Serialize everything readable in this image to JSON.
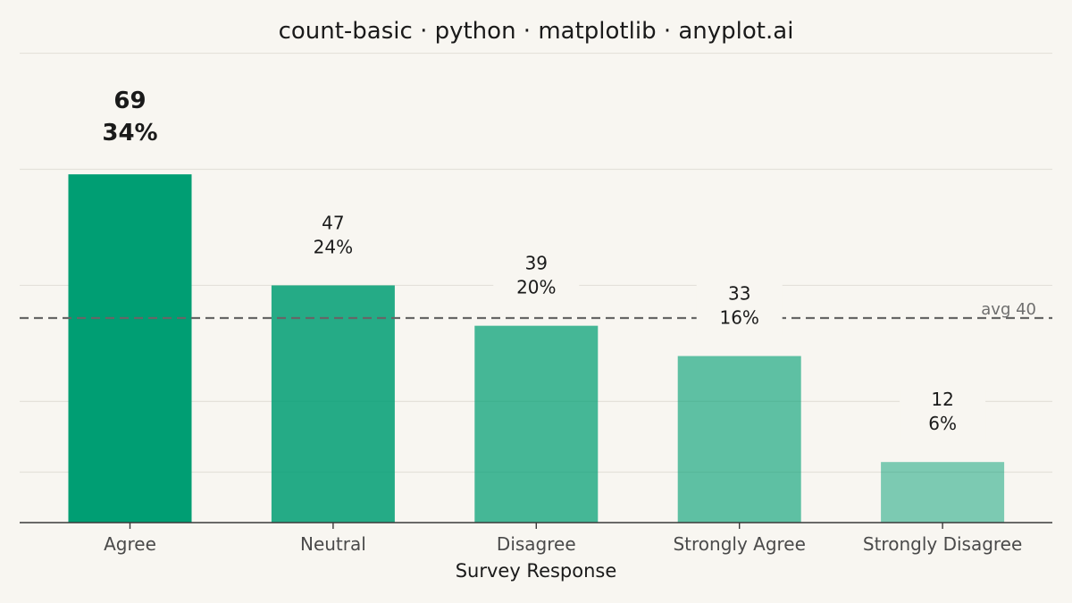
{
  "chart_data": {
    "type": "bar",
    "title": "count-basic · python · matplotlib · anyplot.ai",
    "xlabel": "Survey Response",
    "ylabel": "",
    "categories": [
      "Agree",
      "Neutral",
      "Disagree",
      "Strongly Agree",
      "Strongly Disagree"
    ],
    "values": [
      69,
      47,
      39,
      33,
      12
    ],
    "data_labels": [
      {
        "count": "69",
        "percent": "34%"
      },
      {
        "count": "47",
        "percent": "24%"
      },
      {
        "count": "39",
        "percent": "20%"
      },
      {
        "count": "33",
        "percent": "16%"
      },
      {
        "count": "12",
        "percent": "6%"
      }
    ],
    "highlight_index": 0,
    "reference_line": {
      "value": 40,
      "label": "avg 40",
      "style": "dashed"
    },
    "ylim": [
      0,
      100
    ],
    "grid": true,
    "legend": false,
    "colors": {
      "bar": "#009E73",
      "bar_opacities": [
        1.0,
        0.85,
        0.72,
        0.62,
        0.5
      ],
      "reference_line": "#666666",
      "grid": "#E4E1DA",
      "axis": "#3A3A3A",
      "background": "#F8F6F1"
    }
  }
}
